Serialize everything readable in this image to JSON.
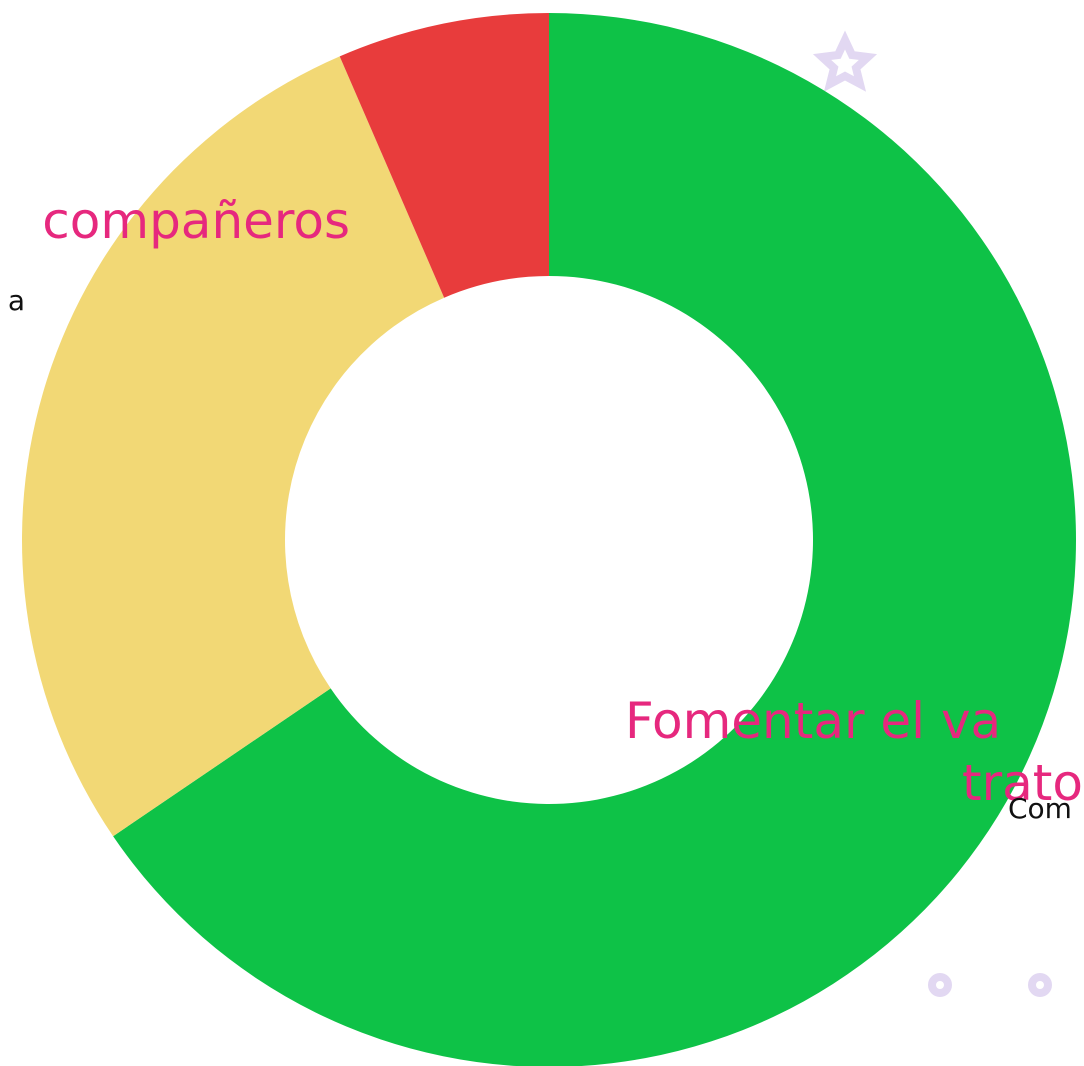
{
  "chart_data": {
    "type": "pie",
    "values": [
      65.5,
      28,
      6.5
    ],
    "colors": [
      "#0ec247",
      "#f2d875",
      "#e83c3c"
    ],
    "donut": true
  },
  "texts": {
    "heading_left": "compañeros",
    "body_left": "a",
    "heading_right_1": "Fomentar el va",
    "heading_right_2": "trato",
    "body_right": "Com"
  }
}
